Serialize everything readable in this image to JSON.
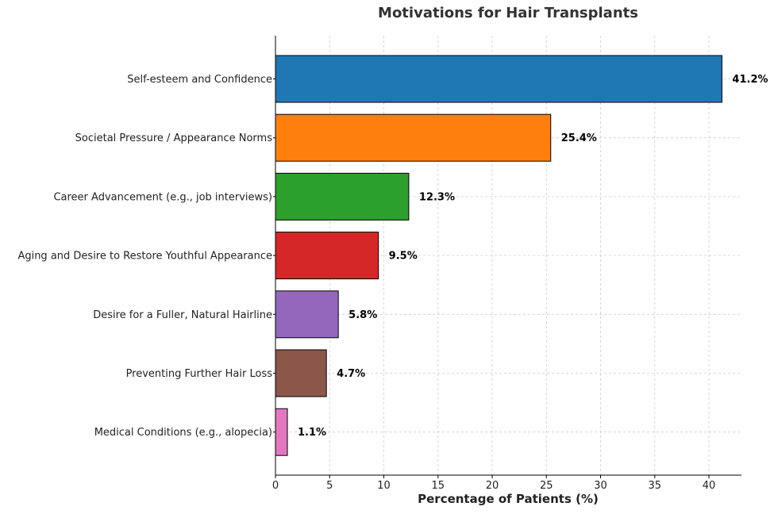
{
  "chart_data": {
    "type": "bar",
    "orientation": "horizontal",
    "title": "Motivations for Hair Transplants",
    "xlabel": "Percentage of Patients (%)",
    "ylabel": "",
    "xlim": [
      0,
      43
    ],
    "xticks": [
      0,
      5,
      10,
      15,
      20,
      25,
      30,
      35,
      40
    ],
    "grid": true,
    "categories": [
      "Self-esteem and Confidence",
      "Societal Pressure / Appearance Norms",
      "Career Advancement (e.g., job interviews)",
      "Aging and Desire to Restore Youthful Appearance",
      "Desire for a Fuller, Natural Hairline",
      "Preventing Further Hair Loss",
      "Medical Conditions (e.g., alopecia)"
    ],
    "values": [
      41.2,
      25.4,
      12.3,
      9.5,
      5.8,
      4.7,
      1.1
    ],
    "value_labels": [
      "41.2%",
      "25.4%",
      "12.3%",
      "9.5%",
      "5.8%",
      "4.7%",
      "1.1%"
    ],
    "colors": [
      "#1f77b4",
      "#ff7f0e",
      "#2ca02c",
      "#d62728",
      "#9467bd",
      "#8c564b",
      "#e377c2"
    ]
  }
}
